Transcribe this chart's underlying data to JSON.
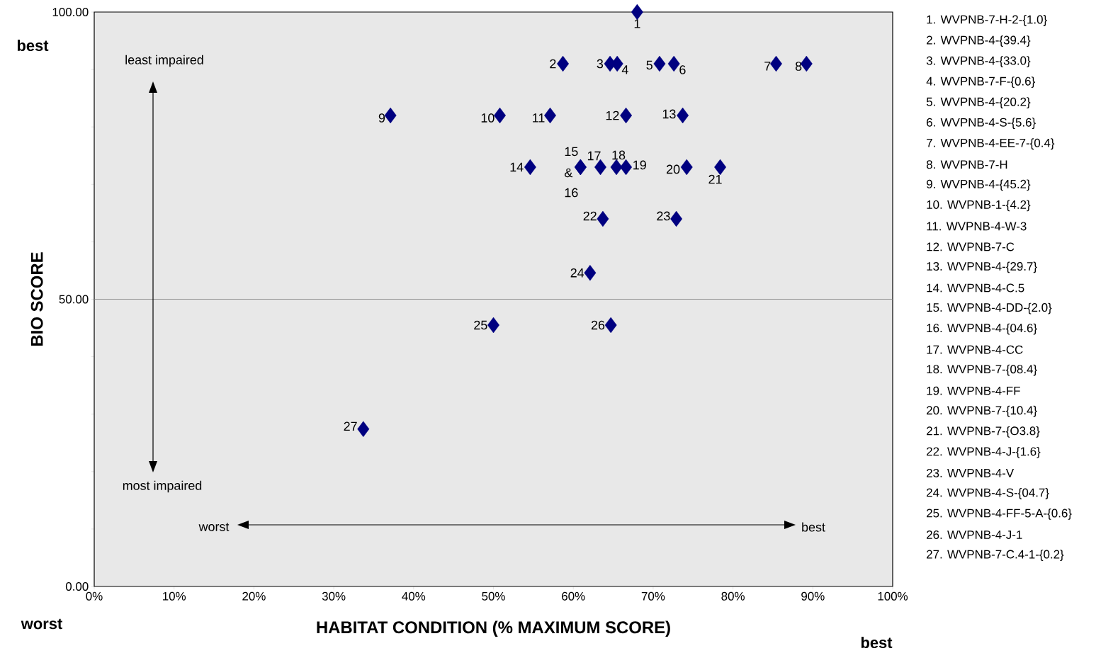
{
  "chart_data": {
    "type": "scatter",
    "xlabel": "HABITAT CONDITION (% MAXIMUM SCORE)",
    "ylabel": "BIO SCORE",
    "xlim": [
      0,
      100
    ],
    "ylim": [
      0,
      100
    ],
    "xticks": [
      {
        "value": 0,
        "label": "0%"
      },
      {
        "value": 10,
        "label": "10%"
      },
      {
        "value": 20,
        "label": "20%"
      },
      {
        "value": 30,
        "label": "30%"
      },
      {
        "value": 40,
        "label": "40%"
      },
      {
        "value": 50,
        "label": "50%"
      },
      {
        "value": 60,
        "label": "60%"
      },
      {
        "value": 70,
        "label": "70%"
      },
      {
        "value": 80,
        "label": "80%"
      },
      {
        "value": 90,
        "label": "90%"
      },
      {
        "value": 100,
        "label": "100%"
      }
    ],
    "yticks": [
      {
        "value": 0,
        "label": "0.00"
      },
      {
        "value": 10,
        "label": null
      },
      {
        "value": 20,
        "label": null
      },
      {
        "value": 30,
        "label": null
      },
      {
        "value": 40,
        "label": null
      },
      {
        "value": 50,
        "label": "50.00"
      },
      {
        "value": 60,
        "label": null
      },
      {
        "value": 70,
        "label": null
      },
      {
        "value": 80,
        "label": null
      },
      {
        "value": 90,
        "label": null
      },
      {
        "value": 100,
        "label": "100.00"
      }
    ],
    "marker": "diamond",
    "grid": false,
    "ref_lines": [
      {
        "axis": "y",
        "value": 50,
        "color": "#808080"
      }
    ],
    "series": [
      {
        "color": "#000080",
        "x": [
          68.0,
          58.7,
          64.6,
          65.5,
          70.8,
          72.6,
          85.4,
          89.2,
          37.1,
          50.8,
          57.1,
          66.6,
          73.7,
          54.6,
          60.9,
          60.9,
          63.4,
          65.4,
          66.6,
          74.2,
          78.4,
          63.7,
          72.9,
          62.1,
          50.0,
          64.7,
          33.7
        ],
        "values": [
          100,
          91,
          91,
          91,
          91,
          91,
          91,
          91,
          82,
          82,
          82,
          82,
          82,
          73,
          73,
          73,
          73,
          73,
          73,
          73,
          73,
          64,
          64,
          54.6,
          45.5,
          45.5,
          27.4
        ]
      }
    ],
    "annotations": [
      {
        "text": "1",
        "x": 68.0,
        "y": 100
      },
      {
        "text": "2",
        "x": 58.7,
        "y": 91
      },
      {
        "text": "3",
        "x": 64.6,
        "y": 91
      },
      {
        "text": "4",
        "x": 65.5,
        "y": 91
      },
      {
        "text": "5",
        "x": 70.8,
        "y": 91
      },
      {
        "text": "6",
        "x": 72.6,
        "y": 91
      },
      {
        "text": "7",
        "x": 85.4,
        "y": 91
      },
      {
        "text": "8",
        "x": 89.2,
        "y": 91
      },
      {
        "text": "9",
        "x": 37.1,
        "y": 82
      },
      {
        "text": "10",
        "x": 50.8,
        "y": 82
      },
      {
        "text": "11",
        "x": 57.1,
        "y": 82
      },
      {
        "text": "12",
        "x": 66.6,
        "y": 82
      },
      {
        "text": "13",
        "x": 73.7,
        "y": 82
      },
      {
        "text": "14",
        "x": 54.6,
        "y": 73
      },
      {
        "text": "15",
        "x": 60.9,
        "y": 73
      },
      {
        "text": "&",
        "x": 60.9,
        "y": 73
      },
      {
        "text": "16",
        "x": 60.9,
        "y": 73
      },
      {
        "text": "17",
        "x": 63.4,
        "y": 73
      },
      {
        "text": "18",
        "x": 65.4,
        "y": 73
      },
      {
        "text": "19",
        "x": 66.6,
        "y": 73
      },
      {
        "text": "20",
        "x": 74.2,
        "y": 73
      },
      {
        "text": "21",
        "x": 78.4,
        "y": 73
      },
      {
        "text": "22",
        "x": 63.7,
        "y": 64
      },
      {
        "text": "23",
        "x": 72.9,
        "y": 64
      },
      {
        "text": "24",
        "x": 62.1,
        "y": 54.6
      },
      {
        "text": "25",
        "x": 50.0,
        "y": 45.5
      },
      {
        "text": "26",
        "x": 64.7,
        "y": 45.5
      },
      {
        "text": "27",
        "x": 33.7,
        "y": 27.4
      },
      "best",
      "worst",
      "best",
      "least impaired",
      "most impaired",
      "worst",
      "best",
      "1.  WVPNB-7-H-2-{1.0}",
      "2.  WVPNB-4-{39.4}",
      "3.  WVPNB-4-{33.0}",
      "4.  WVPNB-7-F-{0.6}",
      "5.  WVPNB-4-{20.2}",
      "6.  WVPNB-4-S-{5.6}",
      "7.  WVPNB-4-EE-7-{0.4}",
      "8.  WVPNB-7-H",
      "9.  WVPNB-4-{45.2}",
      "10. WVPNB-1-{4.2}",
      "11. WVPNB-4-W-3",
      "12. WVPNB-7-C",
      "13. WVPNB-4-{29.7}",
      "14. WVPNB-4-C.5",
      "15. WVPNB-4-DD-{2.0}",
      "16. WVPNB-4-{04.6}",
      "17. WVPNB-4-CC",
      "18. WVPNB-7-{08.4}",
      "19. WVPNB-4-FF",
      "20. WVPNB-7-{10.4}",
      "21. WVPNB-7-{O3.8}",
      "22. WVPNB-4-J-{1.6}",
      "23. WVPNB-4-V",
      "24. WVPNB-4-S-{04.7}",
      "25. WVPNB-4-FF-5-A-{0.6}",
      "26. WVPNB-4-J-1",
      "27. WVPNB-7-C.4-1-{0.2}"
    ]
  }
}
